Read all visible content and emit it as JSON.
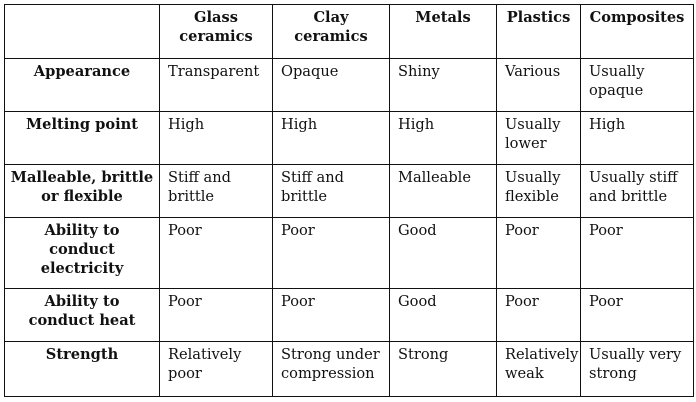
{
  "table": {
    "header": [
      "",
      "Glass\nceramics",
      "Clay\nceramics",
      "Metals",
      "Plastics",
      "Composites"
    ],
    "rows": [
      {
        "label": "Appearance",
        "cells": [
          "Transparent",
          "Opaque",
          "Shiny",
          "Various",
          "Usually\nopaque"
        ]
      },
      {
        "label": "Melting point",
        "cells": [
          "High",
          "High",
          "High",
          "Usually\nlower",
          "High"
        ]
      },
      {
        "label": "Malleable, brittle\nor flexible",
        "cells": [
          "Stiff and\nbrittle",
          "Stiff and\nbrittle",
          "Malleable",
          "Usually\nflexible",
          "Usually stiff\nand brittle"
        ]
      },
      {
        "label": "Ability to\nconduct\nelectricity",
        "cells": [
          "Poor",
          "Poor",
          "Good",
          "Poor",
          "Poor"
        ]
      },
      {
        "label": "Ability to\nconduct heat",
        "cells": [
          "Poor",
          "Poor",
          "Good",
          "Poor",
          "Poor"
        ]
      },
      {
        "label": "Strength",
        "cells": [
          "Relatively\npoor",
          "Strong under\ncompression",
          "Strong",
          "Relatively\nweak",
          "Usually very\nstrong"
        ]
      }
    ]
  }
}
